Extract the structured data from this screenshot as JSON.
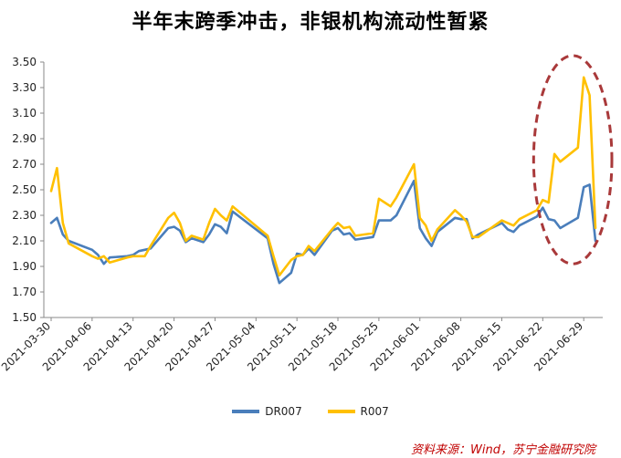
{
  "chart_data": {
    "type": "line",
    "title": "半年末跨季冲击，非银机构流动性暂紧",
    "xlabel": "",
    "ylabel": "",
    "ylim": [
      1.5,
      3.5
    ],
    "y_ticks": [
      "1.50",
      "1.70",
      "1.90",
      "2.10",
      "2.30",
      "2.50",
      "2.70",
      "2.90",
      "3.10",
      "3.30",
      "3.50"
    ],
    "x_ticks": [
      "2021-03-30",
      "2021-04-06",
      "2021-04-13",
      "2021-04-20",
      "2021-04-27",
      "2021-05-04",
      "2021-05-11",
      "2021-05-18",
      "2021-05-25",
      "2021-06-01",
      "2021-06-08",
      "2021-06-15",
      "2021-06-22",
      "2021-06-29"
    ],
    "grid": false,
    "legend_position": "bottom",
    "series": [
      {
        "name": "DR007",
        "color": "#4a7ebb",
        "points": [
          [
            "2021-03-30",
            2.24
          ],
          [
            "2021-03-31",
            2.28
          ],
          [
            "2021-04-01",
            2.15
          ],
          [
            "2021-04-02",
            2.1
          ],
          [
            "2021-04-06",
            2.03
          ],
          [
            "2021-04-07",
            1.99
          ],
          [
            "2021-04-08",
            1.92
          ],
          [
            "2021-04-09",
            1.97
          ],
          [
            "2021-04-12",
            1.98
          ],
          [
            "2021-04-13",
            1.99
          ],
          [
            "2021-04-14",
            2.02
          ],
          [
            "2021-04-15",
            2.03
          ],
          [
            "2021-04-16",
            2.04
          ],
          [
            "2021-04-19",
            2.2
          ],
          [
            "2021-04-20",
            2.21
          ],
          [
            "2021-04-21",
            2.18
          ],
          [
            "2021-04-22",
            2.09
          ],
          [
            "2021-04-23",
            2.12
          ],
          [
            "2021-04-25",
            2.09
          ],
          [
            "2021-04-26",
            2.15
          ],
          [
            "2021-04-27",
            2.23
          ],
          [
            "2021-04-28",
            2.21
          ],
          [
            "2021-04-29",
            2.16
          ],
          [
            "2021-04-30",
            2.33
          ],
          [
            "2021-05-06",
            2.12
          ],
          [
            "2021-05-07",
            1.92
          ],
          [
            "2021-05-08",
            1.77
          ],
          [
            "2021-05-10",
            1.85
          ],
          [
            "2021-05-11",
            2.0
          ],
          [
            "2021-05-12",
            1.99
          ],
          [
            "2021-05-13",
            2.04
          ],
          [
            "2021-05-14",
            1.99
          ],
          [
            "2021-05-17",
            2.18
          ],
          [
            "2021-05-18",
            2.2
          ],
          [
            "2021-05-19",
            2.15
          ],
          [
            "2021-05-20",
            2.16
          ],
          [
            "2021-05-21",
            2.11
          ],
          [
            "2021-05-24",
            2.13
          ],
          [
            "2021-05-25",
            2.26
          ],
          [
            "2021-05-26",
            2.26
          ],
          [
            "2021-05-27",
            2.26
          ],
          [
            "2021-05-28",
            2.3
          ],
          [
            "2021-05-31",
            2.57
          ],
          [
            "2021-06-01",
            2.2
          ],
          [
            "2021-06-02",
            2.12
          ],
          [
            "2021-06-03",
            2.06
          ],
          [
            "2021-06-04",
            2.17
          ],
          [
            "2021-06-07",
            2.28
          ],
          [
            "2021-06-08",
            2.27
          ],
          [
            "2021-06-09",
            2.27
          ],
          [
            "2021-06-10",
            2.12
          ],
          [
            "2021-06-11",
            2.15
          ],
          [
            "2021-06-15",
            2.24
          ],
          [
            "2021-06-16",
            2.19
          ],
          [
            "2021-06-17",
            2.17
          ],
          [
            "2021-06-18",
            2.22
          ],
          [
            "2021-06-21",
            2.29
          ],
          [
            "2021-06-22",
            2.36
          ],
          [
            "2021-06-23",
            2.27
          ],
          [
            "2021-06-24",
            2.26
          ],
          [
            "2021-06-25",
            2.2
          ],
          [
            "2021-06-28",
            2.28
          ],
          [
            "2021-06-29",
            2.52
          ],
          [
            "2021-06-30",
            2.54
          ],
          [
            "2021-07-01",
            2.1
          ]
        ]
      },
      {
        "name": "R007",
        "color": "#ffc000",
        "points": [
          [
            "2021-03-30",
            2.49
          ],
          [
            "2021-03-31",
            2.67
          ],
          [
            "2021-04-01",
            2.24
          ],
          [
            "2021-04-02",
            2.08
          ],
          [
            "2021-04-06",
            1.98
          ],
          [
            "2021-04-07",
            1.96
          ],
          [
            "2021-04-08",
            1.98
          ],
          [
            "2021-04-09",
            1.93
          ],
          [
            "2021-04-12",
            1.97
          ],
          [
            "2021-04-13",
            1.98
          ],
          [
            "2021-04-14",
            1.98
          ],
          [
            "2021-04-15",
            1.98
          ],
          [
            "2021-04-16",
            2.06
          ],
          [
            "2021-04-19",
            2.28
          ],
          [
            "2021-04-20",
            2.32
          ],
          [
            "2021-04-21",
            2.24
          ],
          [
            "2021-04-22",
            2.1
          ],
          [
            "2021-04-23",
            2.14
          ],
          [
            "2021-04-25",
            2.11
          ],
          [
            "2021-04-26",
            2.24
          ],
          [
            "2021-04-27",
            2.35
          ],
          [
            "2021-04-28",
            2.3
          ],
          [
            "2021-04-29",
            2.26
          ],
          [
            "2021-04-30",
            2.37
          ],
          [
            "2021-05-06",
            2.14
          ],
          [
            "2021-05-07",
            1.98
          ],
          [
            "2021-05-08",
            1.83
          ],
          [
            "2021-05-10",
            1.95
          ],
          [
            "2021-05-11",
            1.98
          ],
          [
            "2021-05-12",
            1.99
          ],
          [
            "2021-05-13",
            2.06
          ],
          [
            "2021-05-14",
            2.02
          ],
          [
            "2021-05-17",
            2.19
          ],
          [
            "2021-05-18",
            2.24
          ],
          [
            "2021-05-19",
            2.2
          ],
          [
            "2021-05-20",
            2.21
          ],
          [
            "2021-05-21",
            2.14
          ],
          [
            "2021-05-24",
            2.16
          ],
          [
            "2021-05-25",
            2.43
          ],
          [
            "2021-05-26",
            2.4
          ],
          [
            "2021-05-27",
            2.37
          ],
          [
            "2021-05-28",
            2.44
          ],
          [
            "2021-05-31",
            2.7
          ],
          [
            "2021-06-01",
            2.28
          ],
          [
            "2021-06-02",
            2.22
          ],
          [
            "2021-06-03",
            2.1
          ],
          [
            "2021-06-04",
            2.19
          ],
          [
            "2021-06-07",
            2.34
          ],
          [
            "2021-06-08",
            2.3
          ],
          [
            "2021-06-09",
            2.25
          ],
          [
            "2021-06-10",
            2.13
          ],
          [
            "2021-06-11",
            2.13
          ],
          [
            "2021-06-15",
            2.26
          ],
          [
            "2021-06-16",
            2.24
          ],
          [
            "2021-06-17",
            2.22
          ],
          [
            "2021-06-18",
            2.27
          ],
          [
            "2021-06-21",
            2.34
          ],
          [
            "2021-06-22",
            2.42
          ],
          [
            "2021-06-23",
            2.4
          ],
          [
            "2021-06-24",
            2.78
          ],
          [
            "2021-06-25",
            2.72
          ],
          [
            "2021-06-28",
            2.83
          ],
          [
            "2021-06-29",
            3.38
          ],
          [
            "2021-06-30",
            3.24
          ],
          [
            "2021-07-01",
            2.2
          ]
        ]
      }
    ],
    "highlight_color": "#a9393a"
  },
  "source_note": "资料来源：Wind，苏宁金融研究院"
}
